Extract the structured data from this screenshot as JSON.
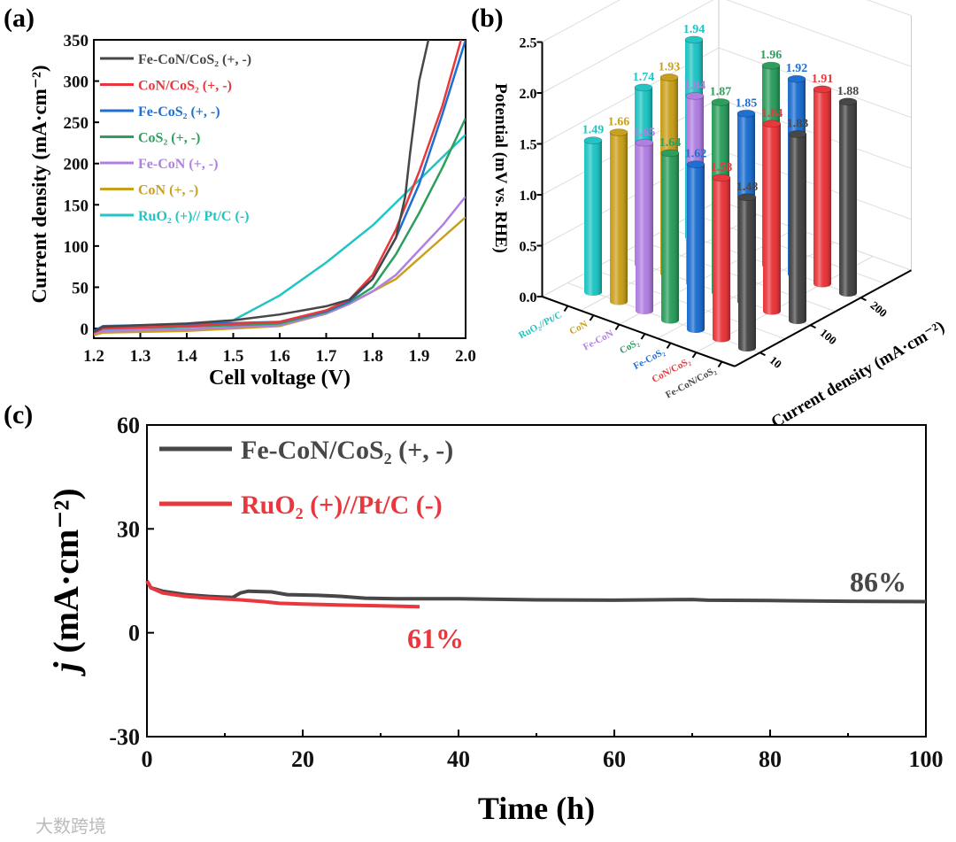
{
  "watermark": "大数跨境",
  "colors": {
    "Fe-CoN/CoS2": "#474747",
    "CoN/CoS2": "#e8383d",
    "Fe-CoS2": "#1f6fd0",
    "CoS2": "#2e9e5e",
    "Fe-CoN": "#b07fe0",
    "CoN": "#c9a01e",
    "RuO2": "#22c4c4"
  },
  "chart_data": [
    {
      "panel": "(a)",
      "type": "line",
      "xlabel": "Cell voltage (V)",
      "ylabel": "Current density (mA·cm⁻²)",
      "xlim": [
        1.2,
        2.0
      ],
      "ylim": [
        -12,
        350
      ],
      "xticks": [
        "1.2",
        "1.3",
        "1.4",
        "1.5",
        "1.6",
        "1.7",
        "1.8",
        "1.9",
        "2.0"
      ],
      "yticks": [
        "0",
        "50",
        "100",
        "150",
        "200",
        "250",
        "300",
        "350"
      ],
      "legend_position": "top-left",
      "series": [
        {
          "key": "Fe-CoN/CoS2",
          "name": "Fe-CoN/CoS₂ (+, -)",
          "x": [
            1.2,
            1.22,
            1.3,
            1.4,
            1.5,
            1.6,
            1.7,
            1.75,
            1.8,
            1.85,
            1.87,
            1.88,
            1.9,
            1.92
          ],
          "y": [
            -4,
            2,
            4,
            6,
            10,
            17,
            27,
            35,
            60,
            110,
            160,
            210,
            300,
            350
          ]
        },
        {
          "key": "CoN/CoS2",
          "name": "CoN/CoS₂ (+, -)",
          "x": [
            1.2,
            1.22,
            1.4,
            1.6,
            1.7,
            1.75,
            1.8,
            1.85,
            1.9,
            1.95,
            1.99
          ],
          "y": [
            -5,
            0,
            3,
            8,
            22,
            35,
            65,
            120,
            190,
            270,
            350
          ]
        },
        {
          "key": "Fe-CoS2",
          "name": "Fe-CoS₂ (+, -)",
          "x": [
            1.2,
            1.22,
            1.4,
            1.6,
            1.7,
            1.75,
            1.8,
            1.85,
            1.9,
            1.95,
            2.0
          ],
          "y": [
            -3,
            3,
            5,
            8,
            21,
            33,
            60,
            110,
            175,
            260,
            350
          ]
        },
        {
          "key": "CoS2",
          "name": "CoS₂ (+, -)",
          "x": [
            1.2,
            1.22,
            1.4,
            1.6,
            1.7,
            1.75,
            1.8,
            1.85,
            1.9,
            1.95,
            2.0
          ],
          "y": [
            -4,
            1,
            2,
            6,
            20,
            32,
            50,
            90,
            140,
            195,
            255
          ]
        },
        {
          "key": "Fe-CoN",
          "name": "Fe-CoN (+, -)",
          "x": [
            1.2,
            1.22,
            1.4,
            1.6,
            1.7,
            1.75,
            1.8,
            1.85,
            1.9,
            1.95,
            2.0
          ],
          "y": [
            -6,
            -3,
            -1,
            4,
            18,
            30,
            45,
            65,
            95,
            125,
            160
          ]
        },
        {
          "key": "CoN",
          "name": "CoN (+, -)",
          "x": [
            1.2,
            1.22,
            1.4,
            1.6,
            1.7,
            1.75,
            1.8,
            1.85,
            1.9,
            1.95,
            2.0
          ],
          "y": [
            -8,
            -5,
            -3,
            3,
            18,
            30,
            45,
            60,
            85,
            110,
            135
          ]
        },
        {
          "key": "RuO2",
          "name": "RuO₂ (+)// Pt/C (-)",
          "x": [
            1.2,
            1.22,
            1.3,
            1.4,
            1.45,
            1.5,
            1.6,
            1.7,
            1.8,
            1.9,
            2.0
          ],
          "y": [
            -6,
            -2,
            0,
            2,
            5,
            10,
            40,
            80,
            125,
            180,
            235
          ]
        }
      ]
    },
    {
      "panel": "(b)",
      "type": "bar",
      "subtype": "3d",
      "zlabel": "Potential (mV vs. RHE)",
      "ylabel": "Current density (mA·cm⁻²)",
      "zlim": [
        0,
        2.5
      ],
      "zticks": [
        "0.0",
        "0.5",
        "1.0",
        "1.5",
        "2.0",
        "2.5"
      ],
      "categories": [
        {
          "key": "RuO2",
          "label": "RuO₂//Pt/C"
        },
        {
          "key": "CoN",
          "label": "CoN"
        },
        {
          "key": "Fe-CoN",
          "label": "Fe-CoN"
        },
        {
          "key": "CoS2",
          "label": "CoS₂"
        },
        {
          "key": "Fe-CoS2",
          "label": "Fe-CoS₂"
        },
        {
          "key": "CoN/CoS2",
          "label": "CoN/CoS₂"
        },
        {
          "key": "Fe-CoN/CoS2",
          "label": "Fe-CoN/CoS₂"
        }
      ],
      "density_levels": [
        "10",
        "100",
        "200"
      ],
      "values": {
        "10": [
          1.49,
          1.66,
          1.65,
          1.64,
          1.62,
          1.58,
          1.48
        ],
        "100": [
          1.74,
          1.93,
          1.84,
          1.87,
          1.85,
          1.84,
          1.83
        ],
        "200": [
          1.94,
          null,
          null,
          1.96,
          1.92,
          1.91,
          1.88
        ]
      }
    },
    {
      "panel": "(c)",
      "type": "line",
      "xlabel": "Time (h)",
      "ylabel_italic": "j",
      "ylabel": " (mA·cm⁻²)",
      "xlim": [
        0,
        100
      ],
      "ylim": [
        -30,
        60
      ],
      "xticks": [
        "0",
        "20",
        "40",
        "60",
        "80",
        "100"
      ],
      "yticks": [
        "-30",
        "0",
        "30",
        "60"
      ],
      "legend_position": "top-left",
      "series": [
        {
          "key": "Fe-CoN/CoS2",
          "name": "Fe-CoN/CoS₂ (+, -)",
          "retention": "86%",
          "x": [
            0,
            0.5,
            2,
            5,
            8,
            11,
            12,
            13,
            16,
            18,
            22,
            25,
            28,
            32,
            40,
            50,
            60,
            70,
            72,
            80,
            90,
            100
          ],
          "y": [
            15,
            13,
            12,
            11,
            10.5,
            10.2,
            11.5,
            12,
            11.8,
            11,
            10.8,
            10.5,
            10,
            9.8,
            9.8,
            9.5,
            9.4,
            9.6,
            9.4,
            9.3,
            9.1,
            9.0
          ]
        },
        {
          "key": "RuO2",
          "name": "RuO₂ (+)//Pt/C (-)",
          "retention": "61%",
          "x": [
            0,
            0.5,
            2,
            5,
            8,
            12,
            15,
            17,
            20,
            25,
            30,
            35
          ],
          "y": [
            15,
            13,
            11.5,
            10.5,
            10,
            9.5,
            9,
            8.5,
            8.3,
            8,
            7.8,
            7.5
          ]
        }
      ]
    }
  ],
  "panels": {
    "a": "(a)",
    "b": "(b)",
    "c": "(c)"
  }
}
